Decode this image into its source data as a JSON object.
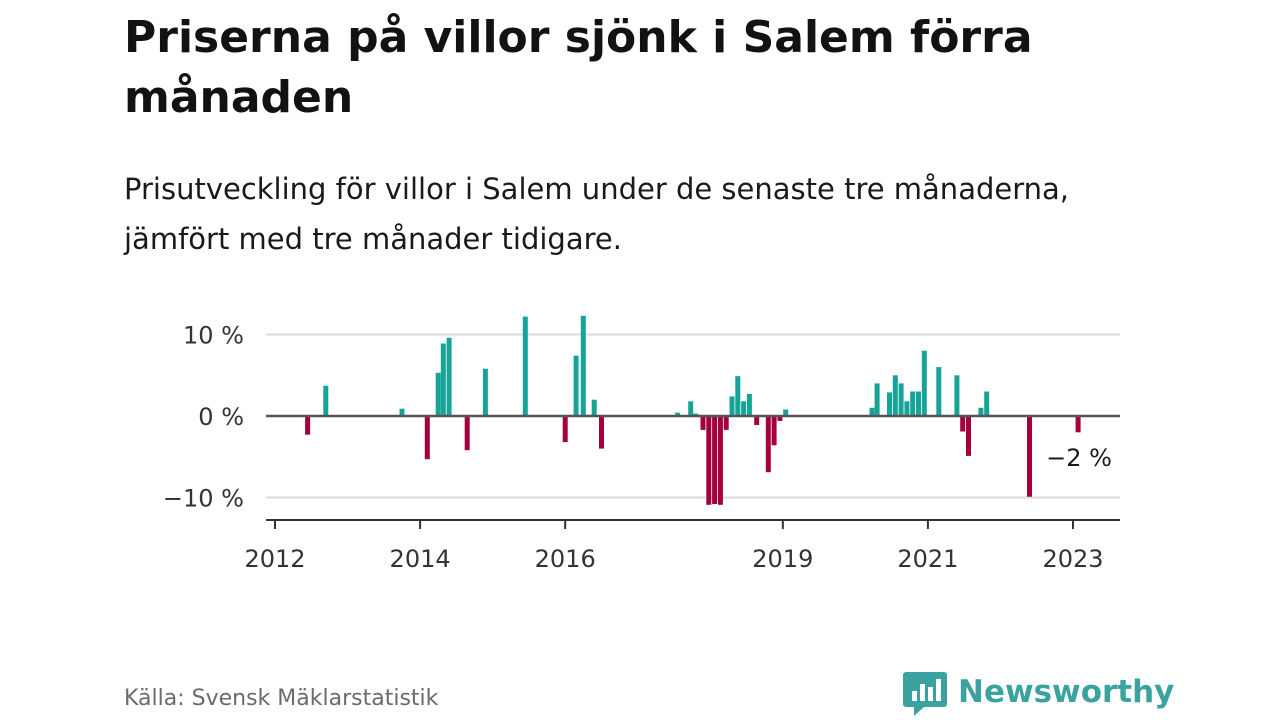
{
  "header": {
    "title": "Priserna på villor sjönk i Salem förra månaden",
    "subtitle": "Prisutveckling för villor i Salem under de senaste tre månaderna, jämfört med tre månader tidigare."
  },
  "footer": {
    "source": "Källa: Svensk Mäklarstatistik",
    "brand": "Newsworthy"
  },
  "colors": {
    "positive": "#17a398",
    "negative": "#a3003d",
    "grid": "#d9d9d9",
    "zero_line": "#555555",
    "brand": "#3aa3a0"
  },
  "chart_data": {
    "type": "bar",
    "title": "Priserna på villor sjönk i Salem förra månaden",
    "subtitle": "Prisutveckling för villor i Salem under de senaste tre månaderna, jämfört med tre månader tidigare.",
    "xlabel": "",
    "ylabel": "",
    "ylim": [
      -13,
      15
    ],
    "xlim": [
      2011.9,
      2023.6
    ],
    "y_ticks": [
      {
        "value": 10,
        "label": "10 %"
      },
      {
        "value": 0,
        "label": "0 %"
      },
      {
        "value": -10,
        "label": "−10 %"
      }
    ],
    "x_ticks": [
      {
        "value": 2012,
        "label": "2012"
      },
      {
        "value": 2014,
        "label": "2014"
      },
      {
        "value": 2016,
        "label": "2016"
      },
      {
        "value": 2019,
        "label": "2019"
      },
      {
        "value": 2021,
        "label": "2021"
      },
      {
        "value": 2023,
        "label": "2023"
      }
    ],
    "grid": true,
    "annotation": {
      "x": 2023.0,
      "label": "−2 %"
    },
    "points": [
      {
        "x": 2012.45,
        "y": -2.3
      },
      {
        "x": 2012.7,
        "y": 3.7
      },
      {
        "x": 2013.75,
        "y": 0.9
      },
      {
        "x": 2014.1,
        "y": -5.3
      },
      {
        "x": 2014.25,
        "y": 5.3
      },
      {
        "x": 2014.32,
        "y": 8.9
      },
      {
        "x": 2014.4,
        "y": 9.6
      },
      {
        "x": 2014.65,
        "y": -4.2
      },
      {
        "x": 2014.9,
        "y": 5.8
      },
      {
        "x": 2015.45,
        "y": 12.2
      },
      {
        "x": 2016.0,
        "y": -3.2
      },
      {
        "x": 2016.15,
        "y": 7.4
      },
      {
        "x": 2016.25,
        "y": 12.3
      },
      {
        "x": 2016.4,
        "y": 2.0
      },
      {
        "x": 2016.5,
        "y": -4.0
      },
      {
        "x": 2017.55,
        "y": 0.4
      },
      {
        "x": 2017.73,
        "y": 1.8
      },
      {
        "x": 2017.8,
        "y": 0.3
      },
      {
        "x": 2017.9,
        "y": -1.7
      },
      {
        "x": 2017.98,
        "y": -10.9
      },
      {
        "x": 2018.06,
        "y": -10.8
      },
      {
        "x": 2018.14,
        "y": -10.9
      },
      {
        "x": 2018.22,
        "y": -1.7
      },
      {
        "x": 2018.3,
        "y": 2.4
      },
      {
        "x": 2018.38,
        "y": 4.9
      },
      {
        "x": 2018.46,
        "y": 1.8
      },
      {
        "x": 2018.54,
        "y": 2.7
      },
      {
        "x": 2018.64,
        "y": -1.1
      },
      {
        "x": 2018.8,
        "y": -6.9
      },
      {
        "x": 2018.88,
        "y": -3.6
      },
      {
        "x": 2018.96,
        "y": -0.6
      },
      {
        "x": 2019.04,
        "y": 0.8
      },
      {
        "x": 2020.23,
        "y": 1.0
      },
      {
        "x": 2020.3,
        "y": 4.0
      },
      {
        "x": 2020.47,
        "y": 2.9
      },
      {
        "x": 2020.55,
        "y": 5.0
      },
      {
        "x": 2020.63,
        "y": 4.0
      },
      {
        "x": 2020.71,
        "y": 1.8
      },
      {
        "x": 2020.79,
        "y": 3.0
      },
      {
        "x": 2020.87,
        "y": 3.0
      },
      {
        "x": 2020.95,
        "y": 8.0
      },
      {
        "x": 2021.15,
        "y": 6.0
      },
      {
        "x": 2021.4,
        "y": 5.0
      },
      {
        "x": 2021.48,
        "y": -1.9
      },
      {
        "x": 2021.56,
        "y": -4.9
      },
      {
        "x": 2021.73,
        "y": 1.0
      },
      {
        "x": 2021.81,
        "y": 3.0
      },
      {
        "x": 2022.4,
        "y": -9.9
      },
      {
        "x": 2023.07,
        "y": -2.0
      }
    ]
  }
}
